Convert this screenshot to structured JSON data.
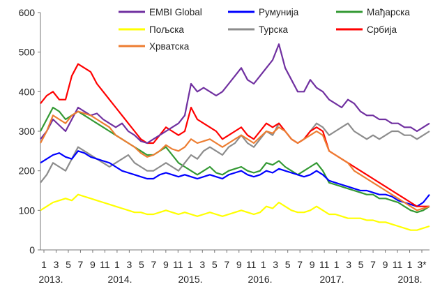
{
  "chart_data": {
    "type": "line",
    "title": "",
    "xlabel": "",
    "ylabel": "",
    "ylim": [
      0,
      600
    ],
    "yticks": [
      0,
      100,
      200,
      300,
      400,
      500,
      600
    ],
    "grid": false,
    "legend_position": "top",
    "x_month_ticks": [
      "1",
      "3",
      "5",
      "7",
      "9",
      "11",
      "1",
      "3",
      "5",
      "7",
      "9",
      "11",
      "1",
      "3",
      "5",
      "7",
      "9",
      "11",
      "1",
      "3",
      "5",
      "7",
      "9",
      "11",
      "1",
      "3",
      "5",
      "7",
      "9",
      "11",
      "1",
      "3*"
    ],
    "x_year_labels": [
      "2013.",
      "2014.",
      "2015.",
      "2016.",
      "2017.",
      "2018."
    ],
    "x": [
      "2013-01",
      "2013-02",
      "2013-03",
      "2013-04",
      "2013-05",
      "2013-06",
      "2013-07",
      "2013-08",
      "2013-09",
      "2013-10",
      "2013-11",
      "2013-12",
      "2014-01",
      "2014-02",
      "2014-03",
      "2014-04",
      "2014-05",
      "2014-06",
      "2014-07",
      "2014-08",
      "2014-09",
      "2014-10",
      "2014-11",
      "2014-12",
      "2015-01",
      "2015-02",
      "2015-03",
      "2015-04",
      "2015-05",
      "2015-06",
      "2015-07",
      "2015-08",
      "2015-09",
      "2015-10",
      "2015-11",
      "2015-12",
      "2016-01",
      "2016-02",
      "2016-03",
      "2016-04",
      "2016-05",
      "2016-06",
      "2016-07",
      "2016-08",
      "2016-09",
      "2016-10",
      "2016-11",
      "2016-12",
      "2017-01",
      "2017-02",
      "2017-03",
      "2017-04",
      "2017-05",
      "2017-06",
      "2017-07",
      "2017-08",
      "2017-09",
      "2017-10",
      "2017-11",
      "2017-12",
      "2018-01",
      "2018-02",
      "2018-03"
    ],
    "series": [
      {
        "name": "EMBI Global",
        "color": "#7030A0",
        "values": [
          280,
          300,
          330,
          315,
          300,
          330,
          360,
          350,
          340,
          345,
          330,
          320,
          310,
          320,
          300,
          290,
          275,
          270,
          280,
          290,
          300,
          310,
          320,
          340,
          420,
          400,
          410,
          400,
          390,
          400,
          420,
          440,
          460,
          430,
          420,
          440,
          460,
          480,
          520,
          460,
          430,
          400,
          400,
          430,
          410,
          400,
          380,
          370,
          360,
          380,
          370,
          350,
          340,
          340,
          330,
          330,
          320,
          320,
          310,
          310,
          300,
          310,
          320
        ]
      },
      {
        "name": "Румунија",
        "color": "#0000FF",
        "values": [
          220,
          230,
          240,
          245,
          235,
          230,
          250,
          245,
          235,
          230,
          225,
          220,
          210,
          200,
          195,
          190,
          185,
          180,
          180,
          190,
          195,
          190,
          185,
          190,
          185,
          180,
          185,
          190,
          185,
          180,
          190,
          195,
          200,
          190,
          185,
          190,
          200,
          195,
          205,
          200,
          195,
          190,
          185,
          190,
          200,
          190,
          175,
          170,
          165,
          160,
          155,
          150,
          150,
          145,
          140,
          140,
          135,
          125,
          120,
          115,
          110,
          120,
          140
        ]
      },
      {
        "name": "Мађарска",
        "color": "#339933",
        "values": [
          300,
          330,
          360,
          350,
          330,
          340,
          350,
          340,
          330,
          320,
          310,
          300,
          290,
          280,
          270,
          260,
          250,
          240,
          240,
          250,
          260,
          240,
          220,
          210,
          200,
          190,
          200,
          210,
          195,
          190,
          200,
          205,
          210,
          200,
          195,
          200,
          220,
          215,
          225,
          210,
          200,
          190,
          200,
          210,
          220,
          200,
          170,
          165,
          160,
          155,
          150,
          145,
          140,
          140,
          130,
          130,
          125,
          120,
          110,
          100,
          95,
          100,
          110
        ]
      },
      {
        "name": "Пољска",
        "color": "#FFFF00",
        "values": [
          100,
          110,
          120,
          125,
          130,
          125,
          140,
          135,
          130,
          125,
          120,
          115,
          110,
          105,
          100,
          95,
          95,
          90,
          90,
          95,
          100,
          95,
          90,
          95,
          90,
          85,
          90,
          95,
          90,
          85,
          90,
          95,
          100,
          95,
          90,
          95,
          110,
          105,
          120,
          110,
          100,
          95,
          95,
          100,
          110,
          100,
          90,
          90,
          85,
          80,
          80,
          80,
          75,
          75,
          70,
          70,
          65,
          60,
          55,
          50,
          50,
          55,
          60
        ]
      },
      {
        "name": "Турска",
        "color": "#8C8C8C",
        "values": [
          170,
          190,
          220,
          210,
          200,
          230,
          260,
          250,
          240,
          230,
          220,
          210,
          220,
          230,
          240,
          220,
          210,
          200,
          200,
          210,
          220,
          210,
          200,
          220,
          240,
          230,
          250,
          260,
          250,
          240,
          260,
          270,
          290,
          270,
          260,
          280,
          300,
          290,
          320,
          300,
          280,
          270,
          280,
          300,
          320,
          310,
          290,
          300,
          310,
          320,
          300,
          290,
          280,
          290,
          280,
          290,
          300,
          300,
          290,
          290,
          280,
          290,
          300
        ]
      },
      {
        "name": "Србија",
        "color": "#FF0000",
        "values": [
          370,
          390,
          400,
          380,
          380,
          440,
          470,
          460,
          450,
          420,
          400,
          380,
          360,
          340,
          320,
          300,
          280,
          270,
          270,
          290,
          310,
          300,
          290,
          300,
          360,
          330,
          320,
          310,
          300,
          280,
          290,
          300,
          310,
          290,
          280,
          300,
          320,
          310,
          320,
          300,
          280,
          270,
          280,
          300,
          310,
          300,
          250,
          240,
          230,
          220,
          210,
          200,
          190,
          180,
          170,
          160,
          150,
          140,
          130,
          120,
          110,
          110,
          110
        ]
      },
      {
        "name": "Хрватска",
        "color": "#ED7D31",
        "values": [
          270,
          300,
          340,
          330,
          320,
          340,
          350,
          345,
          340,
          330,
          320,
          310,
          290,
          280,
          270,
          260,
          245,
          235,
          240,
          250,
          265,
          255,
          250,
          260,
          280,
          270,
          275,
          280,
          270,
          260,
          270,
          280,
          290,
          280,
          270,
          285,
          300,
          295,
          310,
          300,
          280,
          270,
          280,
          290,
          300,
          290,
          250,
          240,
          230,
          220,
          200,
          190,
          180,
          170,
          160,
          150,
          140,
          130,
          120,
          110,
          100,
          105,
          110
        ]
      }
    ]
  }
}
